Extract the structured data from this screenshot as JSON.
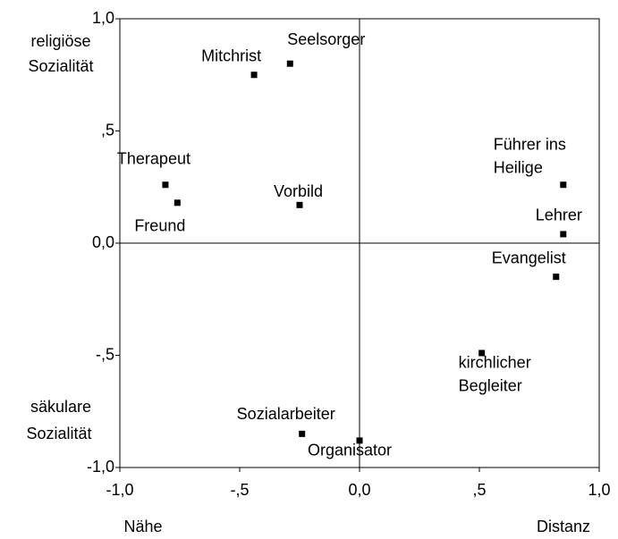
{
  "chart_data": {
    "type": "scatter",
    "x": [
      -0.44,
      -0.29,
      -0.81,
      -0.76,
      -0.25,
      0.85,
      0.85,
      0.82,
      0.51,
      -0.24,
      0.0
    ],
    "values": [
      0.75,
      0.8,
      0.26,
      0.18,
      0.17,
      0.26,
      0.04,
      -0.15,
      -0.49,
      -0.85,
      -0.88
    ],
    "labels": [
      [
        "Mitchrist"
      ],
      [
        "Seelsorger"
      ],
      [
        "Therapeut"
      ],
      [
        "Freund"
      ],
      [
        "Vorbild"
      ],
      [
        "Führer ins",
        "Heilige"
      ],
      [
        "Lehrer"
      ],
      [
        "Evangelist"
      ],
      [
        "kirchlicher",
        "Begleiter"
      ],
      [
        "Sozialarbeiter"
      ],
      [
        "Organisator"
      ]
    ],
    "color": "#000000",
    "xlim": [
      -1.0,
      1.0
    ],
    "ylim": [
      -1.0,
      1.0
    ],
    "xticks": [
      {
        "value": -1.0,
        "label": "-1,0"
      },
      {
        "value": -0.5,
        "label": "-,5"
      },
      {
        "value": 0.0,
        "label": "0,0"
      },
      {
        "value": 0.5,
        "label": ",5"
      },
      {
        "value": 1.0,
        "label": "1,0"
      }
    ],
    "yticks": [
      {
        "value": -1.0,
        "label": "-1,0"
      },
      {
        "value": -0.5,
        "label": "-,5"
      },
      {
        "value": 0.0,
        "label": "0,0"
      },
      {
        "value": 0.5,
        "label": ",5"
      },
      {
        "value": 1.0,
        "label": "1,0"
      }
    ],
    "y_top_label": [
      "religiöse",
      "Sozialität"
    ],
    "y_bottom_label": [
      "säkulare",
      "Sozialität"
    ],
    "x_left_label": "Nähe",
    "x_right_label": "Distanz"
  }
}
